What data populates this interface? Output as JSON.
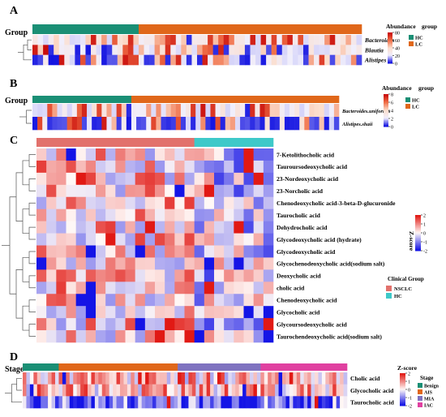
{
  "chart_data": [
    {
      "panel": "A",
      "type": "heatmap",
      "group_label": "Group",
      "rows": [
        "Bacteroides",
        "Blautia",
        "Alistipes"
      ],
      "n_columns": 62,
      "column_groups": [
        {
          "name": "HC",
          "count": 20,
          "color": "#1a8f75"
        },
        {
          "name": "LC",
          "count": 42,
          "color": "#e0671a"
        }
      ],
      "colorbar": {
        "title": "Abundance",
        "min": 0,
        "max": 80,
        "ticks": [
          0,
          20,
          40,
          60,
          80
        ]
      },
      "legend_title": "group"
    },
    {
      "panel": "B",
      "type": "heatmap",
      "group_label": "Group",
      "rows": [
        "Bacteroides.uniformis",
        "Alistipes.shaii"
      ],
      "n_columns": 62,
      "column_groups": [
        {
          "name": "HC",
          "count": 20,
          "color": "#1a8f75"
        },
        {
          "name": "LC",
          "count": 42,
          "color": "#e0671a"
        }
      ],
      "colorbar": {
        "title": "Abundance",
        "min": 0,
        "max": 8,
        "ticks": [
          0,
          2,
          4,
          6,
          8
        ]
      },
      "legend_title": "group"
    },
    {
      "panel": "C",
      "type": "heatmap",
      "rows": [
        "7-Ketolithocholic acid",
        "Tauroursodeoxycholic acid",
        "23-Nordeoxycholic acid",
        "23-Norcholic acid",
        "Chenodeoxycholic acid-3-beta-D-glucuronide",
        "Taurocholic acid",
        "Dehydrocholic acid",
        "Glycodeoxycholic acid (hydrate)",
        "Glycodeoxycholic acid",
        "Glycochenodeoxycholic acid(sodium salt)",
        "Deoxycholic acid",
        "cholic acid",
        "Chenodeoxycholic acid",
        "Glycocholic acid",
        "Glycoursodeoxycholic acid",
        "Taurochendeoxycholic acid(sodium salt)"
      ],
      "n_columns": 24,
      "column_groups": [
        {
          "name": "NSCLC",
          "count": 16,
          "color": "#e2716c"
        },
        {
          "name": "HC",
          "count": 8,
          "color": "#3ec9c9"
        }
      ],
      "colorbar": {
        "title": "Z-score",
        "min": -2,
        "max": 2,
        "ticks": [
          2,
          1,
          0,
          -1,
          -2
        ]
      },
      "legend_title": "Clinical Group"
    },
    {
      "panel": "D",
      "type": "heatmap",
      "group_label": "Stage",
      "rows": [
        "Cholic acid",
        "Glycocholic acid",
        "Taurocholic acid"
      ],
      "n_columns": 90,
      "column_groups": [
        {
          "name": "Benign",
          "count": 10,
          "color": "#1a8f75"
        },
        {
          "name": "AIS",
          "count": 33,
          "color": "#e0671a"
        },
        {
          "name": "MIA",
          "count": 23,
          "color": "#7f73c0"
        },
        {
          "name": "IAC",
          "count": 24,
          "color": "#e040a0"
        }
      ],
      "colorbar": {
        "title": "Z-score",
        "min": -2,
        "max": 2,
        "ticks": [
          2,
          1,
          0,
          -1,
          -2
        ]
      },
      "legend_title": "Stage"
    }
  ]
}
